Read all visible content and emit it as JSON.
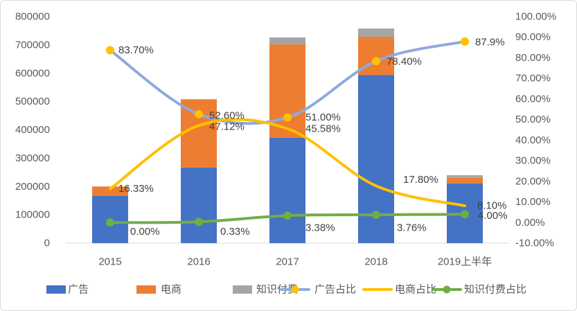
{
  "chart_data": {
    "type": "bar",
    "bar_mode": "stacked",
    "title": "",
    "xlabel": "",
    "ylabel": "",
    "categories": [
      "2015",
      "2016",
      "2017",
      "2018",
      "2019上半年"
    ],
    "y_axis": {
      "ylim": [
        0,
        800000
      ],
      "ticks": [
        "0",
        "100000",
        "200000",
        "300000",
        "400000",
        "500000",
        "600000",
        "700000",
        "800000"
      ]
    },
    "y2_axis": {
      "ylim": [
        -10,
        100
      ],
      "unit": "%",
      "ticks": [
        "-10.00%",
        "0.00%",
        "10.00%",
        "20.00%",
        "30.00%",
        "40.00%",
        "50.00%",
        "60.00%",
        "70.00%",
        "80.00%",
        "90.00%",
        "100.00%"
      ]
    },
    "bar_series": [
      {
        "name": "广告",
        "color": "#4472C4",
        "values": [
          167000,
          267000,
          372000,
          594000,
          211000
        ]
      },
      {
        "name": "电商",
        "color": "#ED7D31",
        "values": [
          33000,
          240000,
          330000,
          135000,
          19400
        ]
      },
      {
        "name": "知识付费",
        "color": "#A5A5A5",
        "values": [
          0,
          1700,
          24500,
          29000,
          9600
        ]
      }
    ],
    "line_series": [
      {
        "name": "广告占比",
        "type": "line",
        "axis": "right",
        "smooth": true,
        "color": "#8FAADC",
        "marker": "circle",
        "marker_color": "#FFC000",
        "values": [
          83.7,
          52.6,
          51.0,
          78.4,
          87.9
        ],
        "labels": [
          "83.70%",
          "52.60%",
          "51.00%",
          "78.40%",
          "87.9%"
        ]
      },
      {
        "name": "电商占比",
        "type": "line",
        "axis": "right",
        "smooth": true,
        "color": "#FFC000",
        "marker": "none",
        "marker_color": "",
        "values": [
          16.33,
          47.12,
          45.58,
          17.8,
          8.1
        ],
        "labels": [
          "16.33%",
          "47.12%",
          "45.58%",
          "17.80%",
          "8.10%"
        ]
      },
      {
        "name": "知识付费占比",
        "type": "line",
        "axis": "right",
        "smooth": true,
        "color": "#70AD47",
        "marker": "circle",
        "marker_color": "#70AD47",
        "values": [
          0.0,
          0.33,
          3.38,
          3.76,
          4.0
        ],
        "labels": [
          "0.00%",
          "0.33%",
          "3.38%",
          "3.76%",
          "4.00%"
        ]
      }
    ],
    "legend": "bottom",
    "grid": false
  }
}
